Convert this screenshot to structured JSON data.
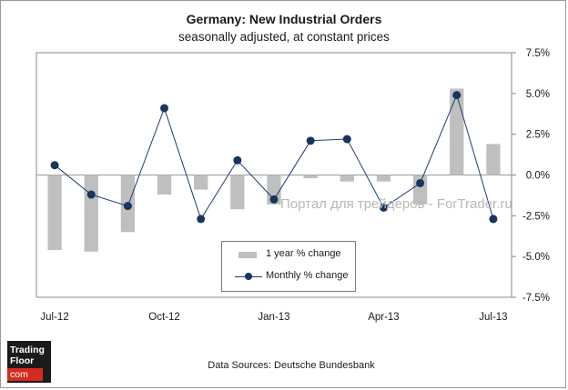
{
  "header": {
    "title": "Germany: New Industrial Orders",
    "subtitle": "seasonally adjusted, at constant prices"
  },
  "footer": {
    "source": "Data Sources: Deutsche Bundesbank"
  },
  "watermark": "Портал для трейдеров - ForTrader.ru",
  "logo": {
    "line1": "Trading",
    "line2": "Floor",
    "line3": "com"
  },
  "colors": {
    "bar": "#bfbfbf",
    "line": "#1f3f6e",
    "marker": "#17355e",
    "plot_border": "#8a8a8a",
    "logo_bg": "#1b1b1b",
    "logo_accent": "#d52b1e"
  },
  "chart_data": {
    "type": "bar+line",
    "title": "Germany: New Industrial Orders",
    "subtitle": "seasonally adjusted, at constant prices",
    "categories": [
      "Jul-12",
      "Aug-12",
      "Sep-12",
      "Oct-12",
      "Nov-12",
      "Dec-12",
      "Jan-13",
      "Feb-13",
      "Mar-13",
      "Apr-13",
      "May-13",
      "Jun-13",
      "Jul-13"
    ],
    "x_tick_labels": [
      "Jul-12",
      "Oct-12",
      "Jan-13",
      "Apr-13",
      "Jul-13"
    ],
    "series": [
      {
        "name": "1 year % change",
        "type": "bar",
        "values": [
          -4.6,
          -4.7,
          -3.5,
          -1.2,
          -0.9,
          -2.1,
          -1.8,
          -0.2,
          -0.4,
          -0.4,
          -1.8,
          5.3,
          1.9
        ]
      },
      {
        "name": "Monthly % change",
        "type": "line",
        "values": [
          0.6,
          -1.2,
          -1.9,
          4.1,
          -2.7,
          0.9,
          -1.5,
          2.1,
          2.2,
          -2.0,
          -0.5,
          4.9,
          -2.7
        ]
      }
    ],
    "y_axis": {
      "position": "right",
      "ylim": [
        -7.5,
        7.5
      ],
      "ticks": [
        7.5,
        5.0,
        2.5,
        0.0,
        -2.5,
        -5.0,
        -7.5
      ],
      "tick_labels": [
        "7.5%",
        "5.0%",
        "2.5%",
        "0.0%",
        "-2.5%",
        "-5.0%",
        "-7.5%"
      ]
    },
    "grid": false,
    "legend": {
      "placement": "bottom-center inside plot",
      "entries": [
        "1 year % change",
        "Monthly % change"
      ]
    }
  }
}
